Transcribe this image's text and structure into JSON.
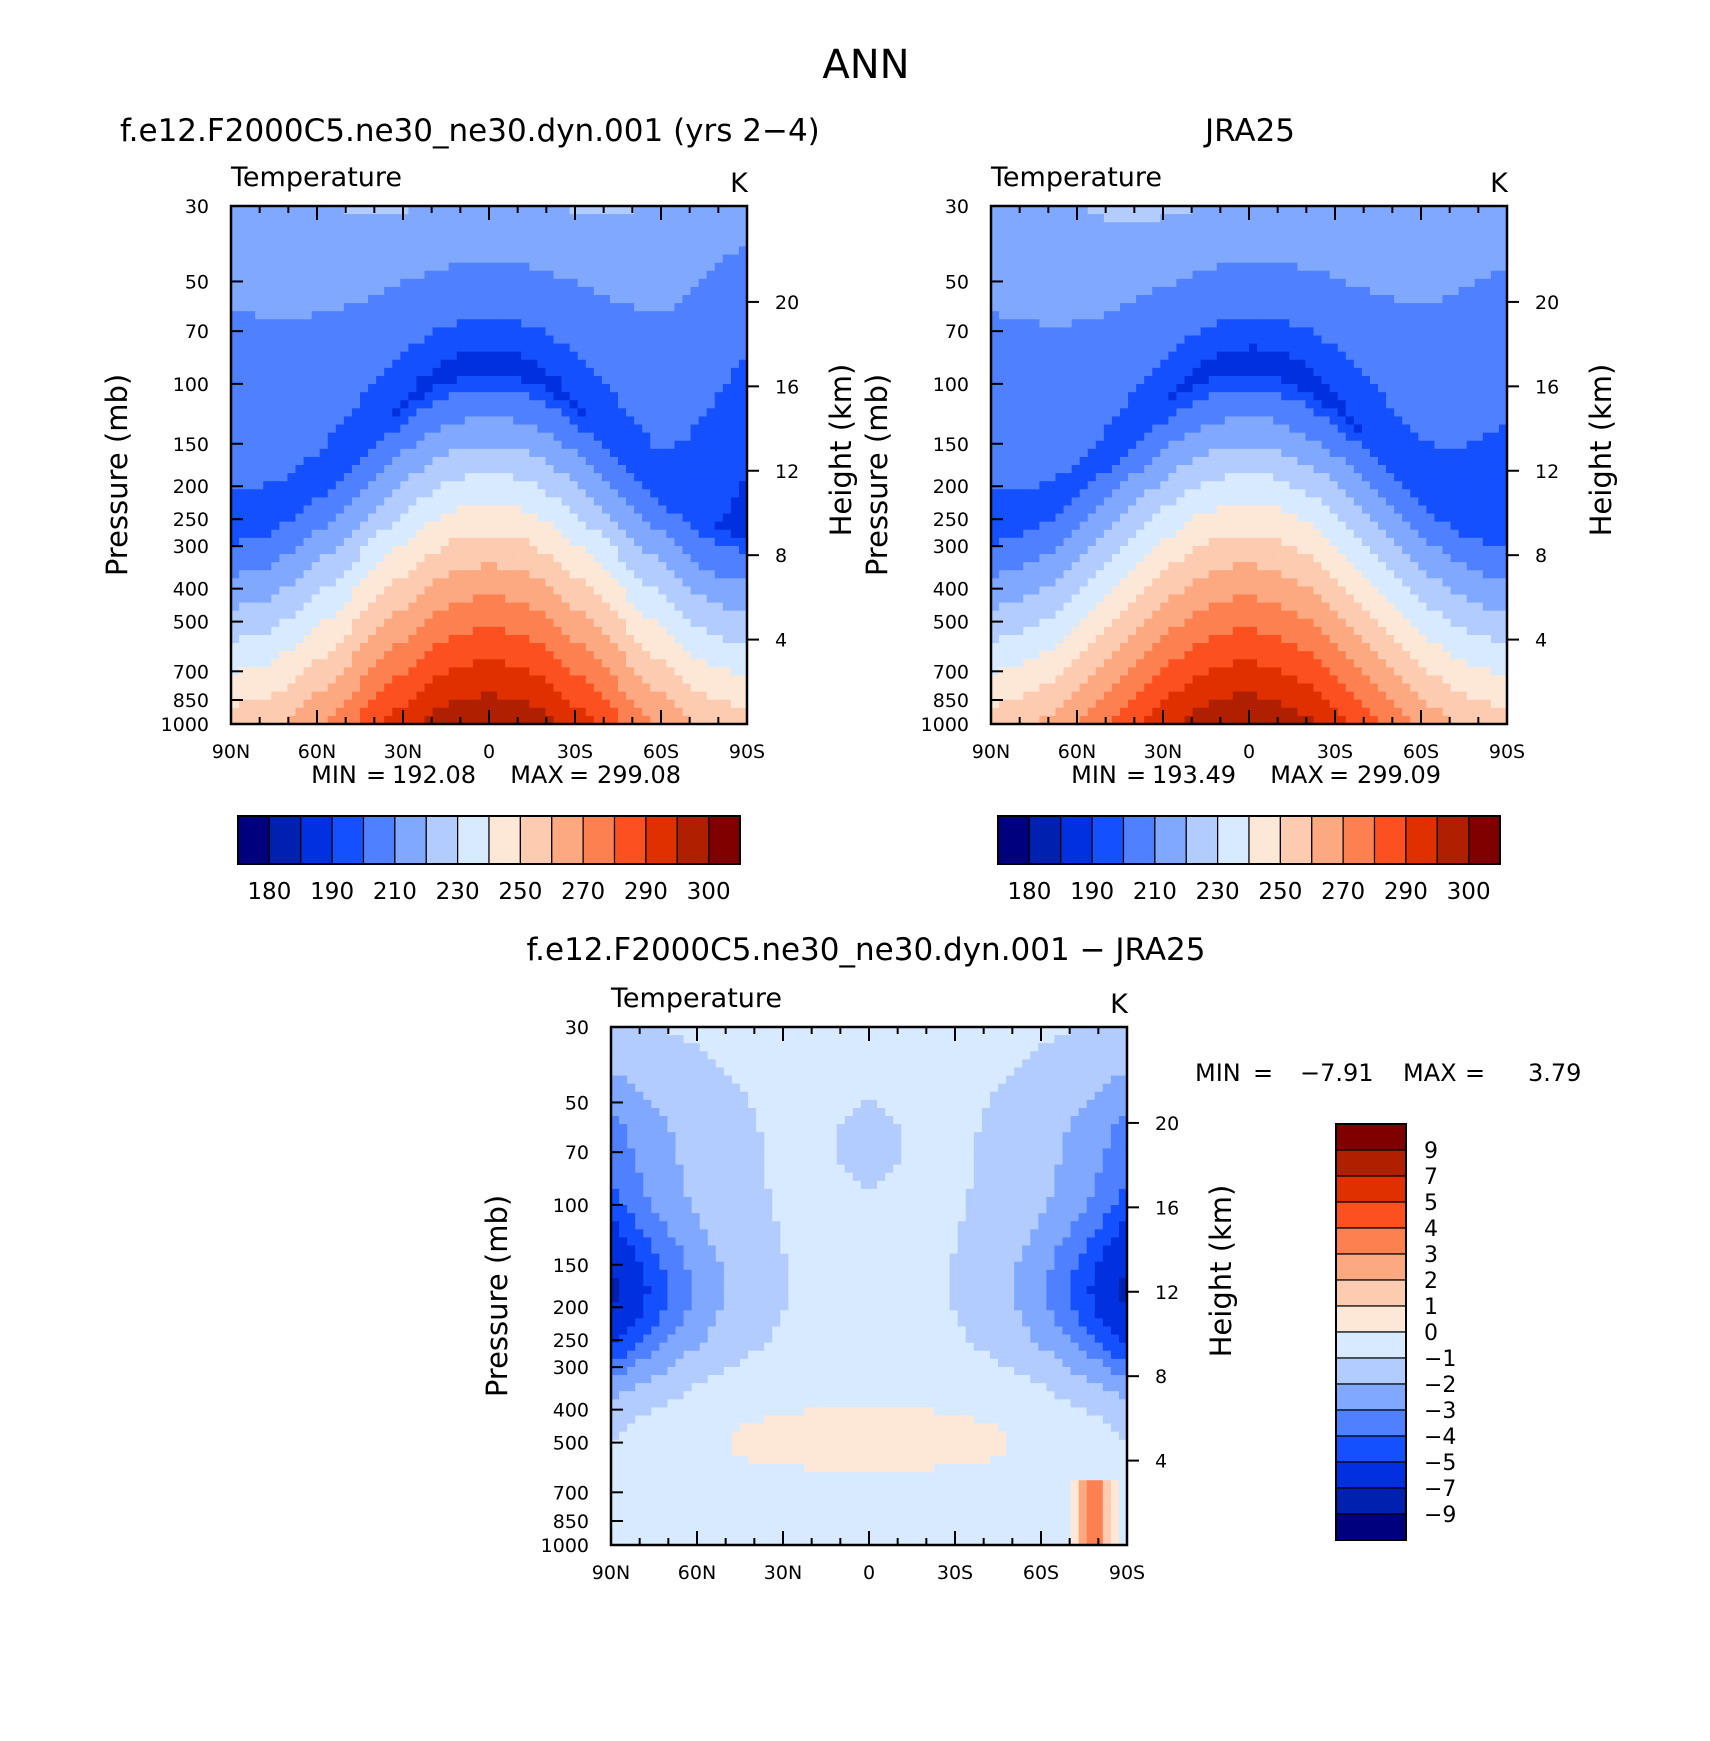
{
  "figure_title": "ANN",
  "palette": [
    "#00007f",
    "#0020b0",
    "#0030e0",
    "#1550ff",
    "#4f80ff",
    "#80a8ff",
    "#b2ccff",
    "#d8eaff",
    "#fde8d8",
    "#fccbb0",
    "#fca880",
    "#fc8050",
    "#fc5020",
    "#e03000",
    "#b02000",
    "#800000"
  ],
  "chart_data": [
    {
      "type": "heatmap",
      "title": "f.e12.F2000C5.ne30_ne30.dyn.001 (yrs 2−4)",
      "left_label": "Temperature",
      "right_label": "K",
      "ylabel": "Pressure (mb)",
      "ylabel_right": "Height (km)",
      "x_ticks": [
        "90N",
        "60N",
        "30N",
        "0",
        "30S",
        "60S",
        "90S"
      ],
      "y_ticks": [
        "30",
        "50",
        "70",
        "100",
        "150",
        "200",
        "250",
        "300",
        "400",
        "500",
        "700",
        "850",
        "1000"
      ],
      "y_right_ticks": [
        "4",
        "8",
        "12",
        "16",
        "20"
      ],
      "stats": {
        "min_label": "MIN",
        "min": "192.08",
        "max_label": "MAX",
        "max": "299.08"
      },
      "colorbar": {
        "orientation": "horizontal",
        "labels": [
          "180",
          "190",
          "210",
          "230",
          "250",
          "270",
          "290",
          "300"
        ]
      },
      "levels": [
        175,
        180,
        185,
        190,
        200,
        210,
        220,
        230,
        240,
        250,
        260,
        270,
        280,
        290,
        300
      ]
    },
    {
      "type": "heatmap",
      "title": "JRA25",
      "left_label": "Temperature",
      "right_label": "K",
      "ylabel": "Pressure (mb)",
      "ylabel_right": "Height (km)",
      "x_ticks": [
        "90N",
        "60N",
        "30N",
        "0",
        "30S",
        "60S",
        "90S"
      ],
      "y_ticks": [
        "30",
        "50",
        "70",
        "100",
        "150",
        "200",
        "250",
        "300",
        "400",
        "500",
        "700",
        "850",
        "1000"
      ],
      "y_right_ticks": [
        "4",
        "8",
        "12",
        "16",
        "20"
      ],
      "stats": {
        "min_label": "MIN",
        "min": "193.49",
        "max_label": "MAX",
        "max": "299.09"
      },
      "colorbar": {
        "orientation": "horizontal",
        "labels": [
          "180",
          "190",
          "210",
          "230",
          "250",
          "270",
          "290",
          "300"
        ]
      },
      "levels": [
        175,
        180,
        185,
        190,
        200,
        210,
        220,
        230,
        240,
        250,
        260,
        270,
        280,
        290,
        300
      ]
    },
    {
      "type": "heatmap",
      "title": "f.e12.F2000C5.ne30_ne30.dyn.001 − JRA25",
      "left_label": "Temperature",
      "right_label": "K",
      "ylabel": "Pressure (mb)",
      "ylabel_right": "Height (km)",
      "x_ticks": [
        "90N",
        "60N",
        "30N",
        "0",
        "30S",
        "60S",
        "90S"
      ],
      "y_ticks": [
        "30",
        "50",
        "70",
        "100",
        "150",
        "200",
        "250",
        "300",
        "400",
        "500",
        "700",
        "850",
        "1000"
      ],
      "y_right_ticks": [
        "4",
        "8",
        "12",
        "16",
        "20"
      ],
      "stats": {
        "min_label": "MIN",
        "min": "−7.91",
        "max_label": "MAX",
        "max": "3.79"
      },
      "colorbar": {
        "orientation": "vertical",
        "labels": [
          "9",
          "7",
          "5",
          "4",
          "3",
          "2",
          "1",
          "0",
          "−1",
          "−2",
          "−3",
          "−4",
          "−5",
          "−7",
          "−9"
        ]
      },
      "levels": [
        -9,
        -7,
        -5,
        -4,
        -3,
        -2,
        -1,
        0,
        1,
        2,
        3,
        4,
        5,
        7,
        9
      ]
    }
  ]
}
